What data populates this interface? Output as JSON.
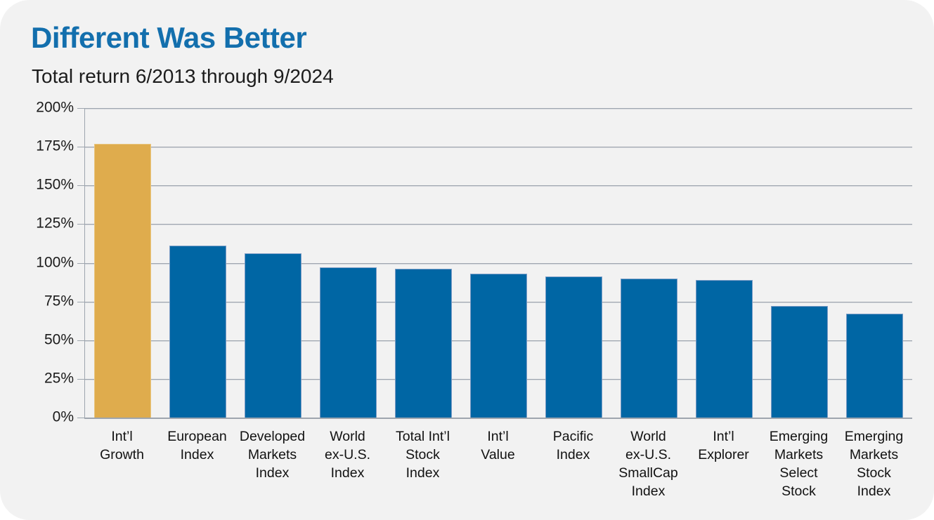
{
  "header": {
    "title": "Different Was Better",
    "subtitle": "Total return 6/2013 through 9/2024"
  },
  "colors": {
    "title_blue": "#136FAD",
    "bar_blue": "#0066A4",
    "bar_gold": "#DFAC4D",
    "background": "#F2F2F2",
    "gridline": "#9EA5AE"
  },
  "chart_data": {
    "type": "bar",
    "title": "Different Was Better",
    "subtitle": "Total return 6/2013 through 9/2024",
    "categories": [
      "Int’l Growth",
      "European Index",
      "Developed Markets Index",
      "World ex-U.S. Index",
      "Total Int’l Stock Index",
      "Int’l Value",
      "Pacific Index",
      "World ex-U.S. SmallCap Index",
      "Int’l Explorer",
      "Emerging Markets Select Stock",
      "Emerging Markets Stock Index"
    ],
    "category_label_lines": [
      "Int’l\nGrowth",
      "European\nIndex",
      "Developed\nMarkets\nIndex",
      "World\nex-U.S.\nIndex",
      "Total Int’l\nStock\nIndex",
      "Int’l\nValue",
      "Pacific\nIndex",
      "World\nex-U.S.\nSmallCap\nIndex",
      "Int’l\nExplorer",
      "Emerging\nMarkets\nSelect\nStock",
      "Emerging\nMarkets\nStock\nIndex"
    ],
    "values": [
      177,
      111,
      106,
      97,
      96,
      93,
      91,
      90,
      89,
      72,
      67
    ],
    "unit": "%",
    "ylabel": "",
    "xlabel": "",
    "ylim": [
      0,
      200
    ],
    "ytick_step": 25,
    "ytick_labels": [
      "0%",
      "25%",
      "50%",
      "75%",
      "100%",
      "125%",
      "150%",
      "175%",
      "200%"
    ],
    "grid": true,
    "legend": "none",
    "highlight_index": 0
  }
}
